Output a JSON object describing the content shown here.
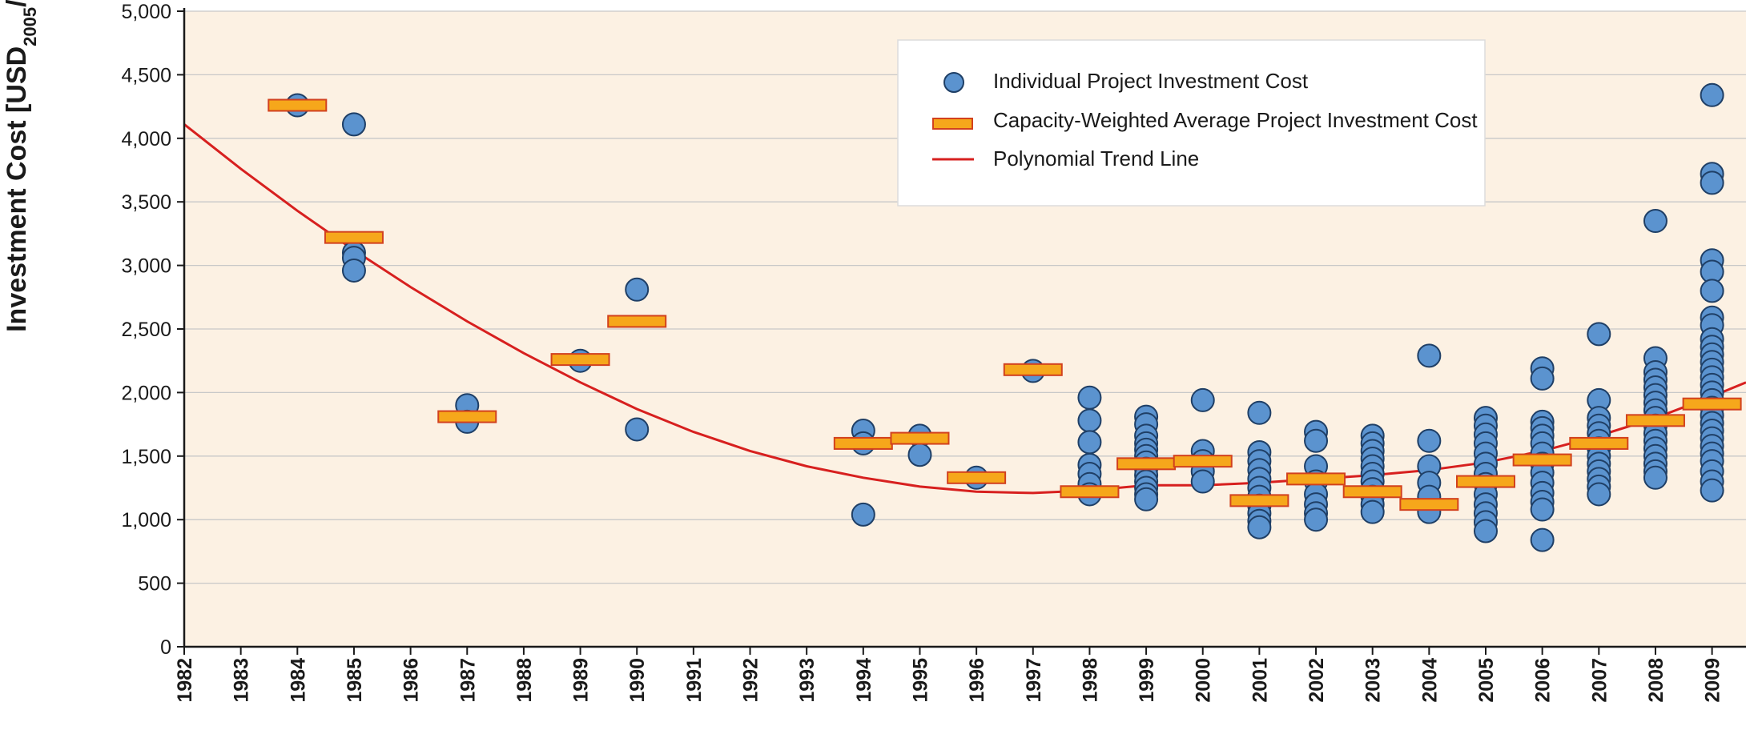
{
  "chart_data": {
    "type": "scatter",
    "ylabel": {
      "main": "Investment Cost [USD",
      "sub": "2005",
      "unit": "/kW]"
    },
    "xlim": [
      1982,
      2009.6
    ],
    "ylim": [
      0,
      5000
    ],
    "x_ticks": [
      "1982",
      "1983",
      "1984",
      "1985",
      "1986",
      "1987",
      "1988",
      "1989",
      "1990",
      "1991",
      "1992",
      "1993",
      "1994",
      "1995",
      "1996",
      "1997",
      "1998",
      "1999",
      "2000",
      "2001",
      "2002",
      "2003",
      "2004",
      "2005",
      "2006",
      "2007",
      "2008",
      "2009"
    ],
    "y_ticks": [
      {
        "value": 0,
        "label": "0"
      },
      {
        "value": 500,
        "label": "500"
      },
      {
        "value": 1000,
        "label": "1,000"
      },
      {
        "value": 1500,
        "label": "1,500"
      },
      {
        "value": 2000,
        "label": "2,000"
      },
      {
        "value": 2500,
        "label": "2,500"
      },
      {
        "value": 3000,
        "label": "3,000"
      },
      {
        "value": 3500,
        "label": "3,500"
      },
      {
        "value": 4000,
        "label": "4,000"
      },
      {
        "value": 4500,
        "label": "4,500"
      },
      {
        "value": 5000,
        "label": "5,000"
      }
    ],
    "grid": true,
    "legend": {
      "position": "top-right",
      "entries": [
        {
          "key": "projects",
          "label": "Individual Project Investment Cost"
        },
        {
          "key": "averages",
          "label": "Capacity-Weighted Average Project Investment Cost"
        },
        {
          "key": "trend",
          "label": "Polynomial Trend Line"
        }
      ]
    },
    "colors": {
      "background": "#fcf1e3",
      "gridline": "#c8c8c8",
      "point_fill": "#5b93cf",
      "point_stroke": "#1f3f66",
      "average_fill": "#f6a71b",
      "average_stroke": "#d2411e",
      "trend": "#d7201f"
    },
    "series": [
      {
        "key": "projects",
        "points": [
          [
            1984,
            4260
          ],
          [
            1985,
            4110
          ],
          [
            1985,
            3100
          ],
          [
            1985,
            3060
          ],
          [
            1985,
            2960
          ],
          [
            1987,
            1900
          ],
          [
            1987,
            1770
          ],
          [
            1989,
            2250
          ],
          [
            1990,
            2810
          ],
          [
            1990,
            1710
          ],
          [
            1994,
            1700
          ],
          [
            1994,
            1600
          ],
          [
            1994,
            1040
          ],
          [
            1995,
            1660
          ],
          [
            1995,
            1510
          ],
          [
            1996,
            1330
          ],
          [
            1997,
            2170
          ],
          [
            1998,
            1960
          ],
          [
            1998,
            1780
          ],
          [
            1998,
            1610
          ],
          [
            1998,
            1430
          ],
          [
            1998,
            1360
          ],
          [
            1998,
            1280
          ],
          [
            1998,
            1200
          ],
          [
            1999,
            1810
          ],
          [
            1999,
            1750
          ],
          [
            1999,
            1660
          ],
          [
            1999,
            1600
          ],
          [
            1999,
            1550
          ],
          [
            1999,
            1500
          ],
          [
            1999,
            1450
          ],
          [
            1999,
            1400
          ],
          [
            1999,
            1350
          ],
          [
            1999,
            1300
          ],
          [
            1999,
            1250
          ],
          [
            1999,
            1200
          ],
          [
            1999,
            1160
          ],
          [
            2000,
            1940
          ],
          [
            2000,
            1540
          ],
          [
            2000,
            1460
          ],
          [
            2000,
            1380
          ],
          [
            2000,
            1300
          ],
          [
            2001,
            1840
          ],
          [
            2001,
            1530
          ],
          [
            2001,
            1460
          ],
          [
            2001,
            1390
          ],
          [
            2001,
            1320
          ],
          [
            2001,
            1250
          ],
          [
            2001,
            1180
          ],
          [
            2001,
            1110
          ],
          [
            2001,
            1050
          ],
          [
            2001,
            990
          ],
          [
            2001,
            940
          ],
          [
            2002,
            1690
          ],
          [
            2002,
            1620
          ],
          [
            2002,
            1420
          ],
          [
            2002,
            1300
          ],
          [
            2002,
            1200
          ],
          [
            2002,
            1120
          ],
          [
            2002,
            1050
          ],
          [
            2002,
            1000
          ],
          [
            2003,
            1660
          ],
          [
            2003,
            1600
          ],
          [
            2003,
            1540
          ],
          [
            2003,
            1480
          ],
          [
            2003,
            1420
          ],
          [
            2003,
            1360
          ],
          [
            2003,
            1300
          ],
          [
            2003,
            1240
          ],
          [
            2003,
            1180
          ],
          [
            2003,
            1120
          ],
          [
            2003,
            1060
          ],
          [
            2004,
            2290
          ],
          [
            2004,
            1620
          ],
          [
            2004,
            1420
          ],
          [
            2004,
            1290
          ],
          [
            2004,
            1180
          ],
          [
            2004,
            1060
          ],
          [
            2005,
            1800
          ],
          [
            2005,
            1740
          ],
          [
            2005,
            1670
          ],
          [
            2005,
            1600
          ],
          [
            2005,
            1520
          ],
          [
            2005,
            1440
          ],
          [
            2005,
            1360
          ],
          [
            2005,
            1280
          ],
          [
            2005,
            1200
          ],
          [
            2005,
            1120
          ],
          [
            2005,
            1050
          ],
          [
            2005,
            980
          ],
          [
            2005,
            910
          ],
          [
            2006,
            2190
          ],
          [
            2006,
            2110
          ],
          [
            2006,
            1770
          ],
          [
            2006,
            1720
          ],
          [
            2006,
            1660
          ],
          [
            2006,
            1600
          ],
          [
            2006,
            1520
          ],
          [
            2006,
            1440
          ],
          [
            2006,
            1370
          ],
          [
            2006,
            1290
          ],
          [
            2006,
            1210
          ],
          [
            2006,
            1140
          ],
          [
            2006,
            1080
          ],
          [
            2006,
            840
          ],
          [
            2007,
            2460
          ],
          [
            2007,
            1940
          ],
          [
            2007,
            1800
          ],
          [
            2007,
            1740
          ],
          [
            2007,
            1680
          ],
          [
            2007,
            1620
          ],
          [
            2007,
            1560
          ],
          [
            2007,
            1500
          ],
          [
            2007,
            1440
          ],
          [
            2007,
            1380
          ],
          [
            2007,
            1320
          ],
          [
            2007,
            1260
          ],
          [
            2007,
            1200
          ],
          [
            2008,
            3350
          ],
          [
            2008,
            2270
          ],
          [
            2008,
            2160
          ],
          [
            2008,
            2100
          ],
          [
            2008,
            2040
          ],
          [
            2008,
            1980
          ],
          [
            2008,
            1920
          ],
          [
            2008,
            1860
          ],
          [
            2008,
            1800
          ],
          [
            2008,
            1740
          ],
          [
            2008,
            1680
          ],
          [
            2008,
            1620
          ],
          [
            2008,
            1560
          ],
          [
            2008,
            1500
          ],
          [
            2008,
            1440
          ],
          [
            2008,
            1380
          ],
          [
            2008,
            1330
          ],
          [
            2009,
            4340
          ],
          [
            2009,
            3720
          ],
          [
            2009,
            3650
          ],
          [
            2009,
            3040
          ],
          [
            2009,
            2950
          ],
          [
            2009,
            2800
          ],
          [
            2009,
            2590
          ],
          [
            2009,
            2530
          ],
          [
            2009,
            2420
          ],
          [
            2009,
            2360
          ],
          [
            2009,
            2300
          ],
          [
            2009,
            2240
          ],
          [
            2009,
            2180
          ],
          [
            2009,
            2120
          ],
          [
            2009,
            2060
          ],
          [
            2009,
            2000
          ],
          [
            2009,
            1940
          ],
          [
            2009,
            1880
          ],
          [
            2009,
            1820
          ],
          [
            2009,
            1760
          ],
          [
            2009,
            1700
          ],
          [
            2009,
            1640
          ],
          [
            2009,
            1580
          ],
          [
            2009,
            1520
          ],
          [
            2009,
            1460
          ],
          [
            2009,
            1380
          ],
          [
            2009,
            1300
          ],
          [
            2009,
            1230
          ]
        ]
      },
      {
        "key": "averages",
        "points": [
          [
            1984,
            4260
          ],
          [
            1985,
            3220
          ],
          [
            1987,
            1810
          ],
          [
            1989,
            2260
          ],
          [
            1990,
            2560
          ],
          [
            1994,
            1600
          ],
          [
            1995,
            1640
          ],
          [
            1996,
            1330
          ],
          [
            1997,
            2180
          ],
          [
            1998,
            1220
          ],
          [
            1999,
            1440
          ],
          [
            2000,
            1460
          ],
          [
            2001,
            1150
          ],
          [
            2002,
            1320
          ],
          [
            2003,
            1220
          ],
          [
            2004,
            1120
          ],
          [
            2005,
            1300
          ],
          [
            2006,
            1470
          ],
          [
            2007,
            1600
          ],
          [
            2008,
            1780
          ],
          [
            2009,
            1910
          ]
        ]
      },
      {
        "key": "trend",
        "points": [
          [
            1982,
            4110
          ],
          [
            1983,
            3760
          ],
          [
            1984,
            3430
          ],
          [
            1985,
            3120
          ],
          [
            1986,
            2830
          ],
          [
            1987,
            2560
          ],
          [
            1988,
            2310
          ],
          [
            1989,
            2080
          ],
          [
            1990,
            1870
          ],
          [
            1991,
            1690
          ],
          [
            1992,
            1540
          ],
          [
            1993,
            1420
          ],
          [
            1994,
            1330
          ],
          [
            1995,
            1260
          ],
          [
            1996,
            1220
          ],
          [
            1997,
            1210
          ],
          [
            1998,
            1230
          ],
          [
            1999,
            1270
          ],
          [
            2000,
            1270
          ],
          [
            2001,
            1290
          ],
          [
            2002,
            1320
          ],
          [
            2003,
            1350
          ],
          [
            2004,
            1390
          ],
          [
            2005,
            1450
          ],
          [
            2006,
            1540
          ],
          [
            2007,
            1660
          ],
          [
            2008,
            1800
          ],
          [
            2009,
            1970
          ],
          [
            2009.6,
            2080
          ]
        ]
      }
    ]
  }
}
